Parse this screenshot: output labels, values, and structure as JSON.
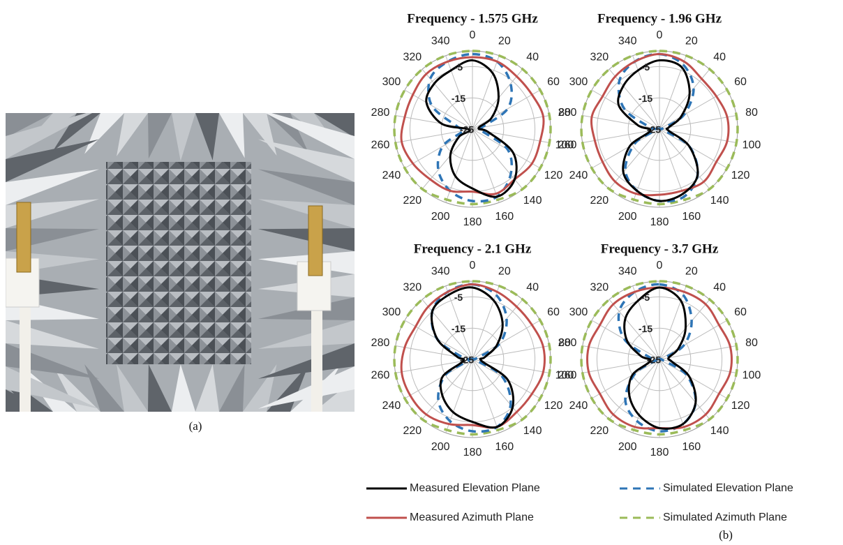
{
  "captions": {
    "a": "(a)",
    "b": "(b)"
  },
  "chart_data": [
    {
      "type": "polar",
      "title": "Frequency - 1.575 GHz",
      "x": [
        0,
        20,
        40,
        60,
        80,
        100,
        120,
        140,
        160,
        180,
        200,
        220,
        240,
        260,
        280,
        300,
        320,
        340
      ],
      "xticks": [
        0,
        20,
        40,
        60,
        80,
        100,
        120,
        140,
        160,
        180,
        200,
        220,
        240,
        260,
        280,
        300,
        320,
        340
      ],
      "ylim": [
        -25,
        0
      ],
      "yticks": [
        -25,
        -15,
        -5
      ],
      "grid": true,
      "series": [
        {
          "name": "Measured Elevation Plane",
          "color": "#000000",
          "dashed": false,
          "values": [
            -3,
            -6,
            -12,
            -18,
            -23,
            -20,
            -10,
            -4,
            -2,
            -6,
            -9,
            -14,
            -20,
            -24,
            -15,
            -8,
            -6,
            -5
          ]
        },
        {
          "name": "Measured Azimuth Plane",
          "color": "#c0504d",
          "dashed": false,
          "values": [
            -2,
            -2,
            -3,
            -3,
            -2,
            -3,
            -3,
            -4,
            -3,
            -5,
            -4,
            -4,
            -3,
            -2,
            -3,
            -3,
            -2,
            -2
          ]
        },
        {
          "name": "Simulated Elevation Plane",
          "color": "#2e75b6",
          "dashed": true,
          "values": [
            -1,
            -2,
            -6,
            -12,
            -22,
            -22,
            -12,
            -6,
            -2,
            -2,
            -4,
            -8,
            -14,
            -22,
            -20,
            -10,
            -4,
            -2
          ]
        },
        {
          "name": "Simulated Azimuth Plane",
          "color": "#9bbb59",
          "dashed": true,
          "values": [
            0,
            0,
            0,
            0,
            0,
            0,
            0,
            0,
            -1,
            -1,
            -1,
            0,
            0,
            0,
            0,
            0,
            0,
            0
          ]
        }
      ]
    },
    {
      "type": "polar",
      "title": "Frequency - 1.96 GHz",
      "x": [
        0,
        20,
        40,
        60,
        80,
        100,
        120,
        140,
        160,
        180,
        200,
        220,
        240,
        260,
        280,
        300,
        320,
        340
      ],
      "xticks": [
        0,
        20,
        40,
        60,
        80,
        100,
        120,
        140,
        160,
        180,
        200,
        220,
        240,
        260,
        280,
        300,
        320,
        340
      ],
      "ylim": [
        -25,
        0
      ],
      "yticks": [
        -25,
        -15,
        -5
      ],
      "grid": true,
      "series": [
        {
          "name": "Measured Elevation Plane",
          "color": "#000000",
          "dashed": false,
          "values": [
            -3,
            -4,
            -10,
            -17,
            -22,
            -22,
            -14,
            -6,
            -3,
            -2,
            -4,
            -7,
            -14,
            -22,
            -18,
            -10,
            -7,
            -5
          ]
        },
        {
          "name": "Measured Azimuth Plane",
          "color": "#c0504d",
          "dashed": false,
          "values": [
            -1,
            -2,
            -4,
            -4,
            -3,
            -3,
            -4,
            -3,
            -4,
            -4,
            -3,
            -3,
            -4,
            -4,
            -3,
            -4,
            -3,
            -2
          ]
        },
        {
          "name": "Simulated Elevation Plane",
          "color": "#2e75b6",
          "dashed": true,
          "values": [
            -1,
            -3,
            -8,
            -16,
            -24,
            -24,
            -14,
            -6,
            -2,
            -2,
            -4,
            -8,
            -16,
            -24,
            -22,
            -12,
            -5,
            -2
          ]
        },
        {
          "name": "Simulated Azimuth Plane",
          "color": "#9bbb59",
          "dashed": true,
          "values": [
            0,
            0,
            0,
            0,
            0,
            0,
            0,
            0,
            -1,
            -1,
            -1,
            0,
            0,
            0,
            0,
            0,
            0,
            0
          ]
        }
      ]
    },
    {
      "type": "polar",
      "title": "Frequency - 2.1 GHz",
      "x": [
        0,
        20,
        40,
        60,
        80,
        100,
        120,
        140,
        160,
        180,
        200,
        220,
        240,
        260,
        280,
        300,
        320,
        340
      ],
      "xticks": [
        0,
        20,
        40,
        60,
        80,
        100,
        120,
        140,
        160,
        180,
        200,
        220,
        240,
        260,
        280,
        300,
        320,
        340
      ],
      "ylim": [
        -25,
        0
      ],
      "yticks": [
        -25,
        -15,
        -5
      ],
      "grid": true,
      "series": [
        {
          "name": "Measured Elevation Plane",
          "color": "#000000",
          "dashed": false,
          "values": [
            -2,
            -5,
            -10,
            -16,
            -21,
            -22,
            -12,
            -5,
            -2,
            -5,
            -7,
            -10,
            -14,
            -22,
            -20,
            -12,
            -5,
            -3
          ]
        },
        {
          "name": "Measured Azimuth Plane",
          "color": "#c0504d",
          "dashed": false,
          "values": [
            -1,
            -2,
            -3,
            -3,
            -2,
            -2,
            -3,
            -3,
            -2,
            -4,
            -3,
            -2,
            -2,
            -2,
            -3,
            -4,
            -3,
            -2
          ]
        },
        {
          "name": "Simulated Elevation Plane",
          "color": "#2e75b6",
          "dashed": true,
          "values": [
            -1,
            -3,
            -8,
            -15,
            -24,
            -24,
            -14,
            -6,
            -2,
            -2,
            -4,
            -8,
            -15,
            -24,
            -22,
            -12,
            -5,
            -2
          ]
        },
        {
          "name": "Simulated Azimuth Plane",
          "color": "#9bbb59",
          "dashed": true,
          "values": [
            0,
            0,
            0,
            0,
            0,
            0,
            0,
            0,
            -1,
            -1,
            -1,
            0,
            0,
            0,
            0,
            0,
            0,
            0
          ]
        }
      ]
    },
    {
      "type": "polar",
      "title": "Frequency - 3.7 GHz",
      "x": [
        0,
        20,
        40,
        60,
        80,
        100,
        120,
        140,
        160,
        180,
        200,
        220,
        240,
        260,
        280,
        300,
        320,
        340
      ],
      "xticks": [
        0,
        20,
        40,
        60,
        80,
        100,
        120,
        140,
        160,
        180,
        200,
        220,
        240,
        260,
        280,
        300,
        320,
        340
      ],
      "ylim": [
        -25,
        0
      ],
      "yticks": [
        -25,
        -15,
        -5
      ],
      "grid": true,
      "series": [
        {
          "name": "Measured Elevation Plane",
          "color": "#000000",
          "dashed": false,
          "values": [
            -2,
            -5,
            -12,
            -18,
            -22,
            -21,
            -14,
            -7,
            -3,
            -3,
            -6,
            -10,
            -15,
            -22,
            -19,
            -13,
            -8,
            -5
          ]
        },
        {
          "name": "Measured Azimuth Plane",
          "color": "#c0504d",
          "dashed": false,
          "values": [
            -2,
            -2,
            -2,
            -3,
            -2,
            -2,
            -3,
            -2,
            -2,
            -3,
            -2,
            -2,
            -3,
            -2,
            -2,
            -3,
            -2,
            -2
          ]
        },
        {
          "name": "Simulated Elevation Plane",
          "color": "#2e75b6",
          "dashed": true,
          "values": [
            -1,
            -3,
            -9,
            -16,
            -24,
            -24,
            -15,
            -7,
            -3,
            -2,
            -4,
            -8,
            -16,
            -24,
            -22,
            -12,
            -5,
            -2
          ]
        },
        {
          "name": "Simulated Azimuth Plane",
          "color": "#9bbb59",
          "dashed": true,
          "values": [
            0,
            0,
            0,
            0,
            0,
            0,
            0,
            0,
            -1,
            -1,
            -1,
            0,
            0,
            0,
            0,
            0,
            0,
            0
          ]
        }
      ]
    }
  ]
}
